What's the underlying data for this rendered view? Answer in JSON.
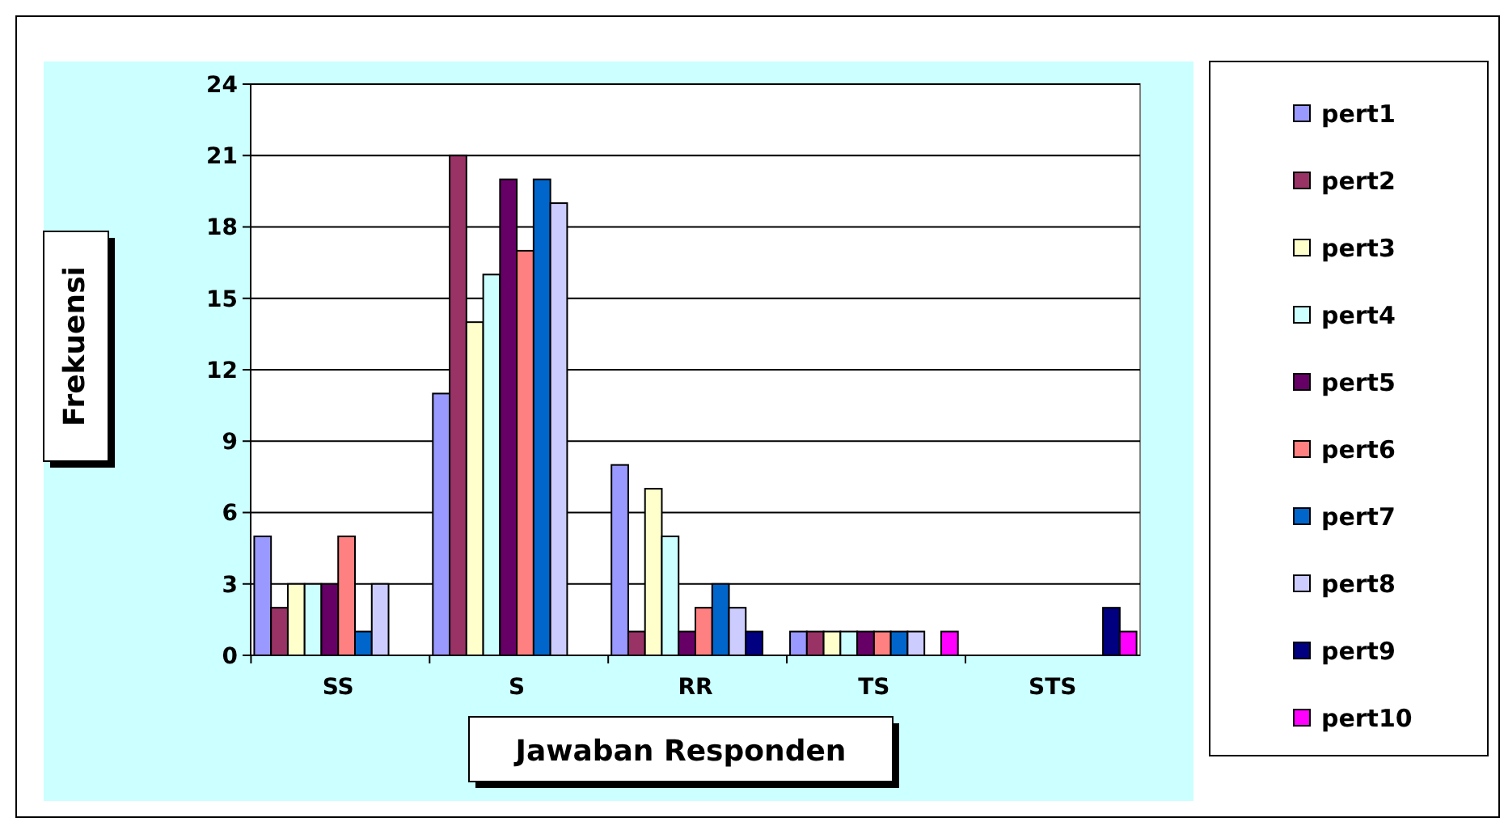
{
  "chart_data": {
    "type": "bar",
    "xlabel": "Jawaban Responden",
    "ylabel": "Frekuensi",
    "categories": [
      "SS",
      "S",
      "RR",
      "TS",
      "STS"
    ],
    "series": [
      {
        "name": "pert1",
        "color": "#9999ff",
        "values": [
          5,
          11,
          8,
          1,
          0
        ]
      },
      {
        "name": "pert2",
        "color": "#993366",
        "values": [
          2,
          21,
          1,
          1,
          0
        ]
      },
      {
        "name": "pert3",
        "color": "#ffffcc",
        "values": [
          3,
          14,
          7,
          1,
          0
        ]
      },
      {
        "name": "pert4",
        "color": "#ccffff",
        "values": [
          3,
          16,
          5,
          1,
          0
        ]
      },
      {
        "name": "pert5",
        "color": "#660066",
        "values": [
          3,
          20,
          1,
          1,
          0
        ]
      },
      {
        "name": "pert6",
        "color": "#ff8080",
        "values": [
          5,
          17,
          2,
          1,
          0
        ]
      },
      {
        "name": "pert7",
        "color": "#0066cc",
        "values": [
          1,
          20,
          3,
          1,
          0
        ]
      },
      {
        "name": "pert8",
        "color": "#ccccff",
        "values": [
          3,
          19,
          2,
          1,
          0
        ]
      },
      {
        "name": "pert9",
        "color": "#000080",
        "values": [
          0,
          0,
          1,
          0,
          2
        ]
      },
      {
        "name": "pert10",
        "color": "#ff00ff",
        "values": [
          0,
          0,
          0,
          1,
          1
        ]
      }
    ],
    "ylim": [
      0,
      24
    ],
    "yticks": [
      0,
      3,
      6,
      9,
      12,
      15,
      18,
      21,
      24
    ],
    "grid": "y",
    "legend": "right"
  }
}
